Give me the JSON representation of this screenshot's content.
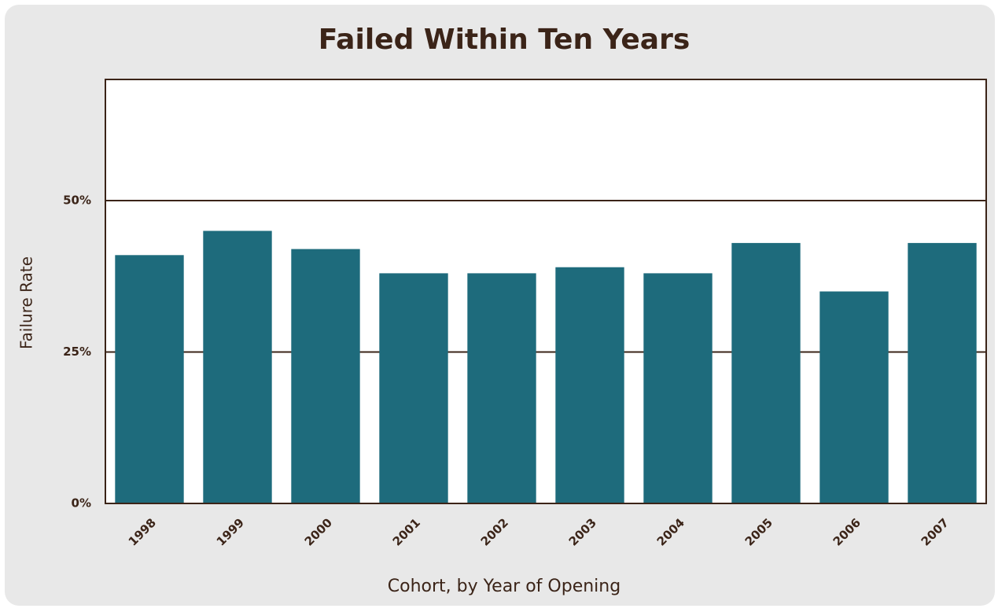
{
  "chart_data": {
    "type": "bar",
    "title": "Failed Within Ten Years",
    "x_label": "Cohort, by Year of Opening",
    "y_label": "Failure Rate",
    "categories": [
      "1998",
      "1999",
      "2000",
      "2001",
      "2002",
      "2003",
      "2004",
      "2005",
      "2006",
      "2007"
    ],
    "values": [
      41,
      45,
      42,
      38,
      38,
      39,
      38,
      43,
      35,
      43
    ],
    "color": "#1e6b7c",
    "ylim": [
      0,
      70
    ],
    "yticks": [
      {
        "value": 0,
        "label": "0%"
      },
      {
        "value": 25,
        "label": "25%"
      },
      {
        "value": 50,
        "label": "50%"
      }
    ],
    "grid": true
  }
}
